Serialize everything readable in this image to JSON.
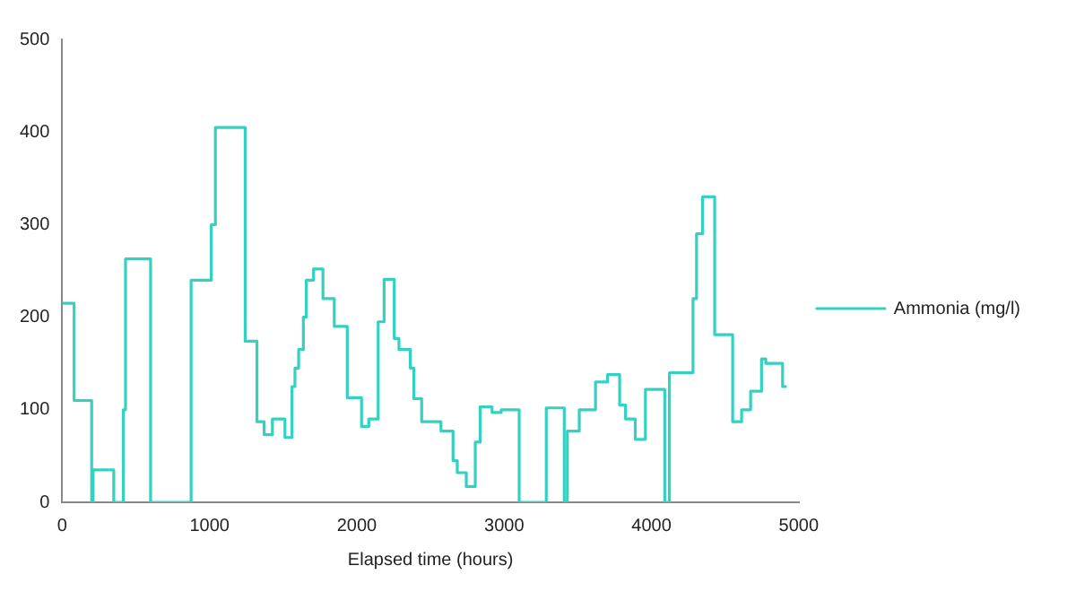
{
  "chart_data": {
    "type": "step",
    "xlabel": "Elapsed time (hours)",
    "xlim": [
      0,
      5000
    ],
    "xticks": [
      0,
      1000,
      2000,
      3000,
      4000,
      5000
    ],
    "ylim": [
      0,
      500
    ],
    "yticks": [
      0,
      100,
      200,
      300,
      400,
      500
    ],
    "grid": false,
    "legend": "right",
    "marker": "none",
    "series": [
      {
        "name": "Ammonia (mg/l)",
        "color": "#33d1c1",
        "x": [
          0,
          81,
          200,
          210,
          350,
          415,
          430,
          600,
          875,
          1012,
          1040,
          1242,
          1322,
          1371,
          1427,
          1512,
          1560,
          1580,
          1605,
          1637,
          1657,
          1706,
          1770,
          1847,
          1935,
          2032,
          2081,
          2145,
          2185,
          2254,
          2286,
          2363,
          2387,
          2440,
          2490,
          2571,
          2653,
          2682,
          2743,
          2804,
          2837,
          2918,
          2980,
          3102,
          3286,
          3408,
          3429,
          3510,
          3620,
          3702,
          3784,
          3824,
          3890,
          3959,
          4090,
          4122,
          4282,
          4306,
          4347,
          4429,
          4551,
          4612,
          4673,
          4747,
          4776,
          4890,
          4918
        ],
        "values": [
          215,
          110,
          0,
          35,
          0,
          100,
          263,
          0,
          240,
          300,
          405,
          174,
          87,
          73,
          90,
          70,
          125,
          145,
          165,
          200,
          240,
          252,
          220,
          190,
          113,
          82,
          90,
          195,
          241,
          177,
          165,
          145,
          112,
          87,
          87,
          77,
          45,
          32,
          17,
          65,
          103,
          97,
          100,
          0,
          102,
          0,
          77,
          100,
          130,
          138,
          105,
          90,
          68,
          122,
          0,
          140,
          220,
          290,
          330,
          181,
          87,
          100,
          120,
          155,
          150,
          125,
          125
        ]
      }
    ]
  }
}
